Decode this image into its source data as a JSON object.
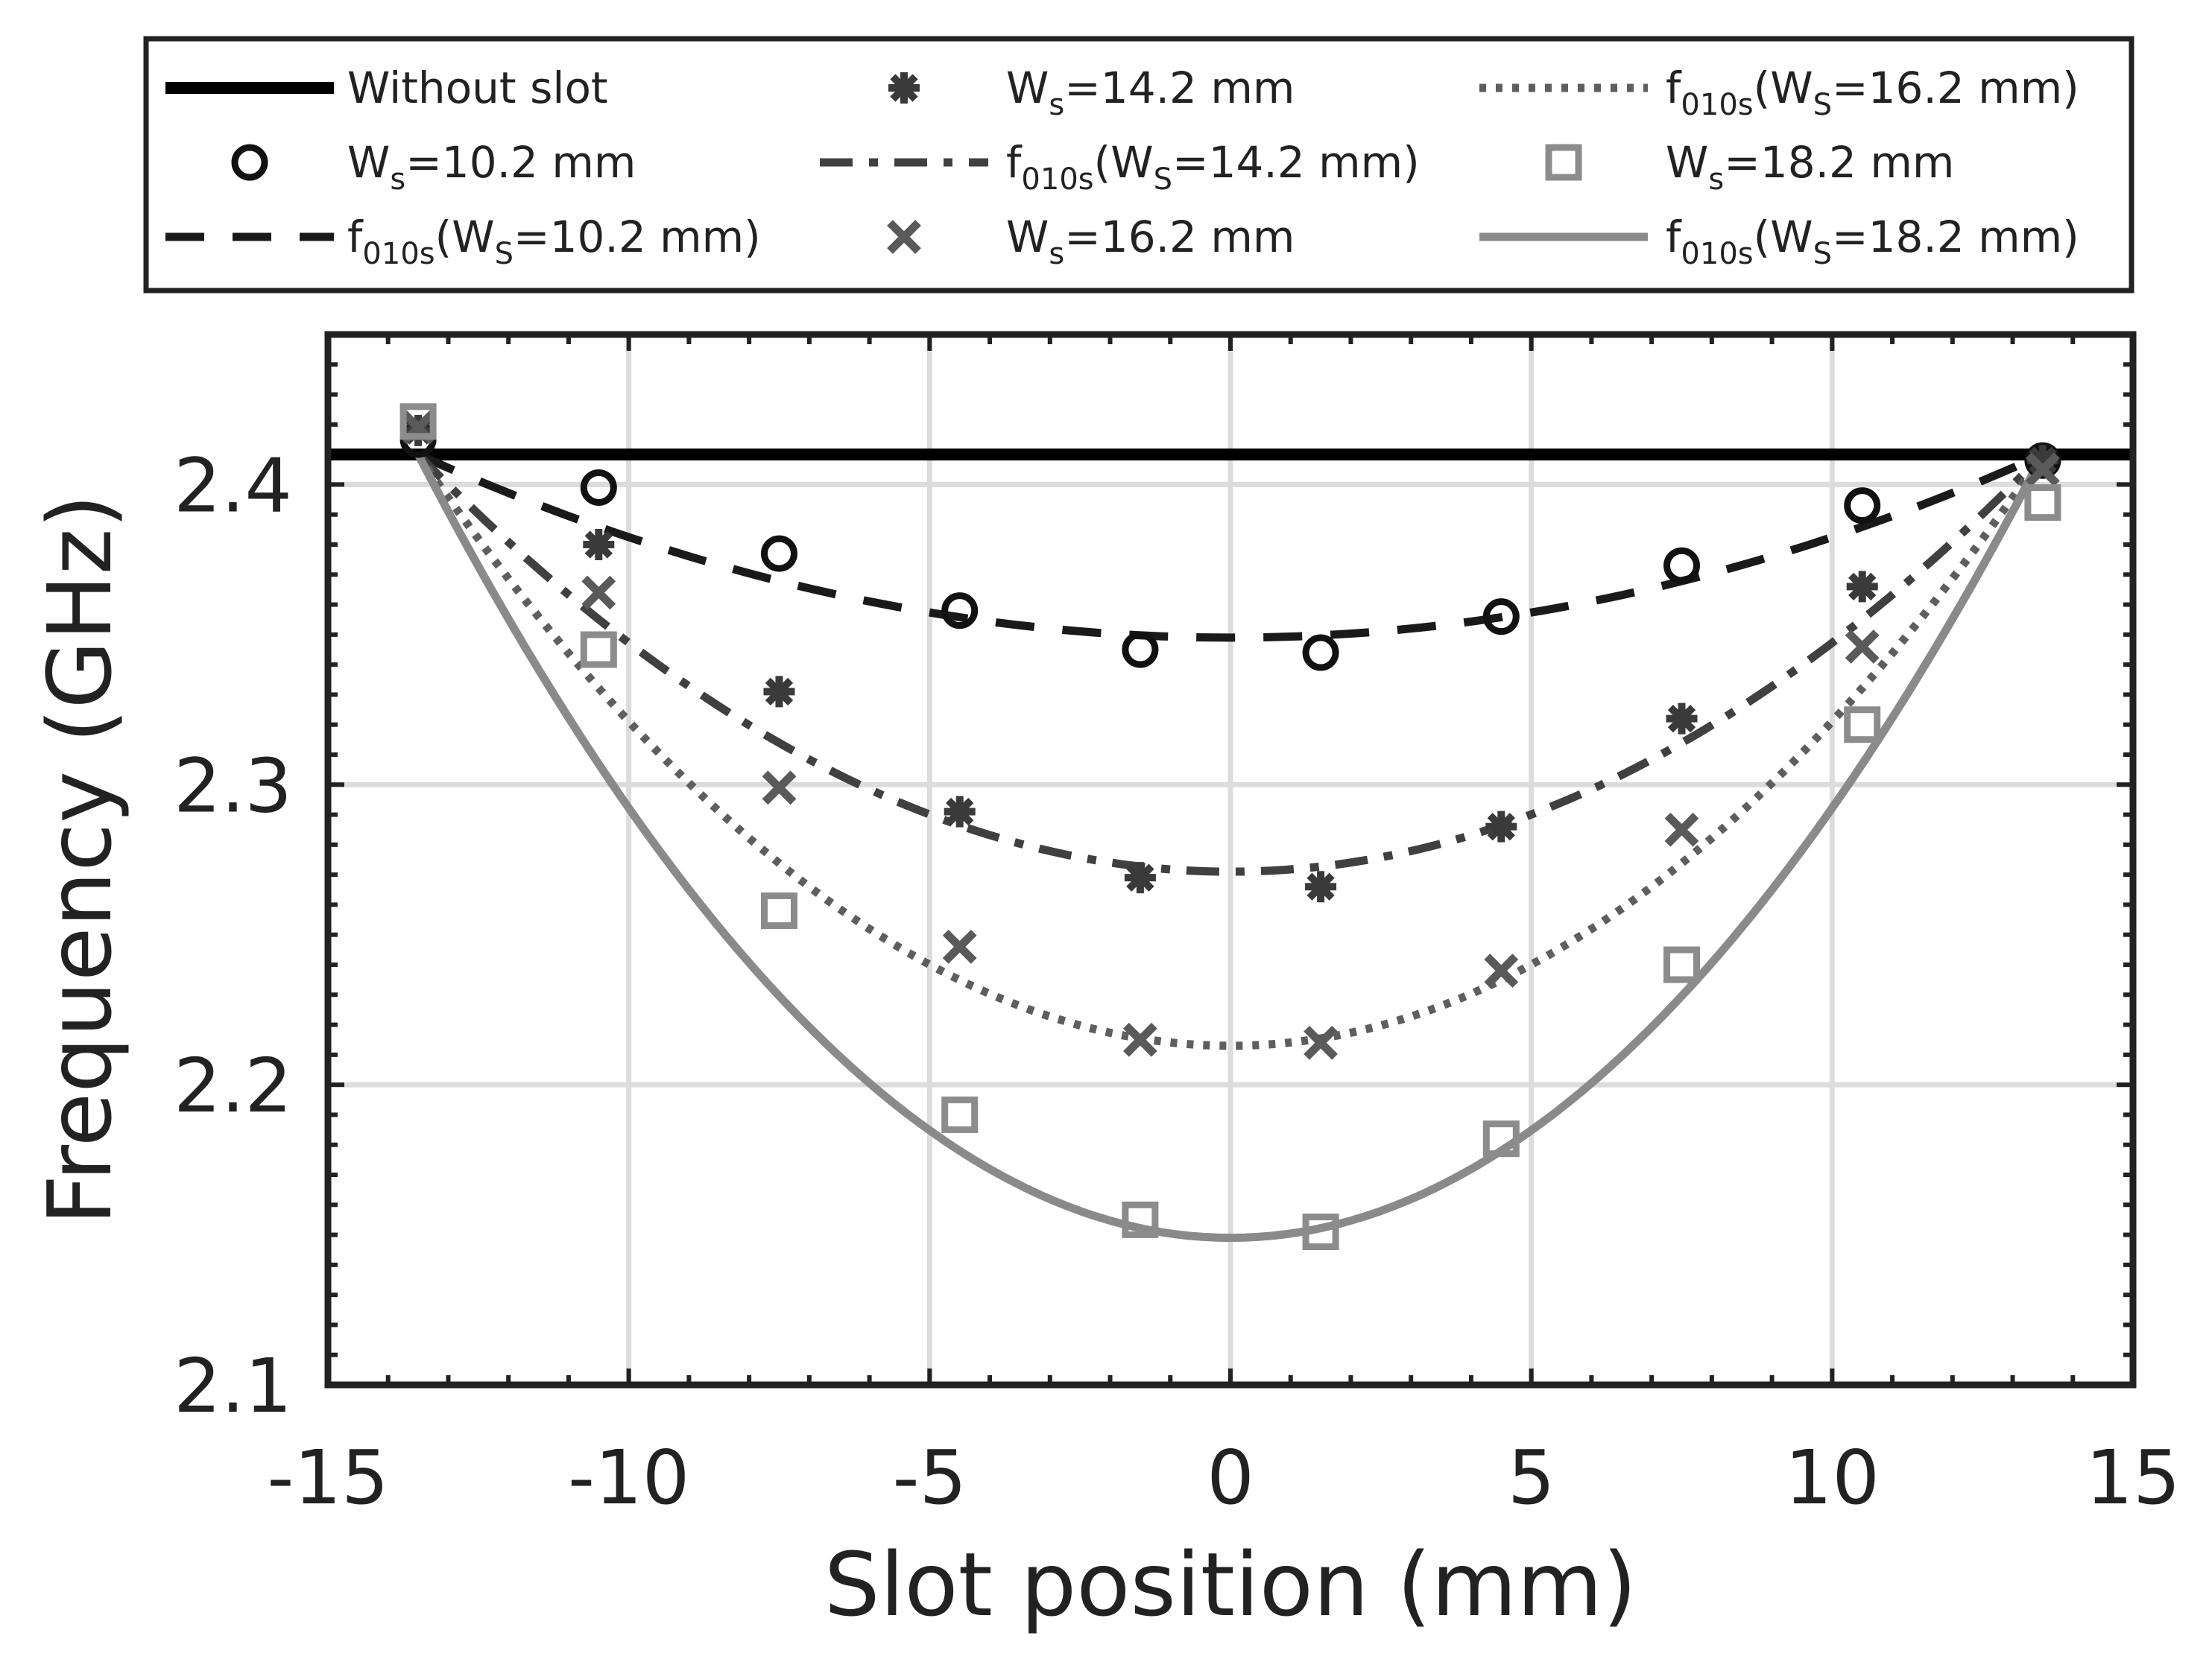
{
  "chart_data": {
    "type": "scatter",
    "title": "",
    "xlabel": "Slot position (mm)",
    "ylabel": "Frequency (GHz)",
    "xlim": [
      -15,
      15
    ],
    "ylim": [
      2.1,
      2.45
    ],
    "xticks": [
      -15,
      -10,
      -5,
      0,
      5,
      10,
      15
    ],
    "xtick_labels": [
      "-15",
      "-10",
      "-5",
      "0",
      "5",
      "10",
      "15"
    ],
    "yticks": [
      2.1,
      2.2,
      2.3,
      2.4
    ],
    "ytick_labels": [
      "2.1",
      "2.2",
      "2.3",
      "2.4"
    ],
    "grid": true,
    "legend_position": "top, outside plot area, 3 columns",
    "reference_line": {
      "name": "Without slot",
      "y": 2.41,
      "color": "#000000"
    },
    "x": [
      -13.5,
      -10.5,
      -7.5,
      -4.5,
      -1.5,
      1.5,
      4.5,
      7.5,
      10.5,
      13.5
    ],
    "series": [
      {
        "name": "Ws=10.2 mm",
        "kind": "markers",
        "marker": "circle",
        "color": "#111111",
        "values": [
          2.415,
          2.399,
          2.377,
          2.358,
          2.345,
          2.344,
          2.356,
          2.373,
          2.393,
          2.408
        ]
      },
      {
        "name": "Ws=14.2 mm",
        "kind": "markers",
        "marker": "star",
        "color": "#3a3a3a",
        "values": [
          2.418,
          2.38,
          2.331,
          2.291,
          2.269,
          2.266,
          2.286,
          2.322,
          2.366,
          2.408
        ]
      },
      {
        "name": "Ws=16.2 mm",
        "kind": "markers",
        "marker": "x",
        "color": "#5a5a5a",
        "values": [
          2.419,
          2.364,
          2.299,
          2.246,
          2.215,
          2.214,
          2.238,
          2.285,
          2.346,
          2.405
        ]
      },
      {
        "name": "Ws=18.2 mm",
        "kind": "markers",
        "marker": "square",
        "color": "#8c8c8c",
        "values": [
          2.421,
          2.345,
          2.258,
          2.19,
          2.155,
          2.151,
          2.182,
          2.24,
          2.32,
          2.394
        ]
      },
      {
        "name": "f010s(WS=10.2 mm)",
        "kind": "fit",
        "dash": "dashed",
        "color": "#1a1a1a",
        "vertex": [
          0,
          2.349
        ],
        "endpoint": [
          13.5,
          2.41
        ]
      },
      {
        "name": "f010s(WS=14.2 mm)",
        "kind": "fit",
        "dash": "dashdot",
        "color": "#404040",
        "vertex": [
          0,
          2.271
        ],
        "endpoint": [
          13.5,
          2.41
        ]
      },
      {
        "name": "f010s(WS=16.2 mm)",
        "kind": "fit",
        "dash": "dotted",
        "color": "#5e5e5e",
        "vertex": [
          0,
          2.213
        ],
        "endpoint": [
          13.5,
          2.41
        ]
      },
      {
        "name": "f010s(WS=18.2 mm)",
        "kind": "fit",
        "dash": "solid",
        "color": "#8a8a8a",
        "vertex": [
          0,
          2.149
        ],
        "endpoint": [
          13.5,
          2.41
        ]
      }
    ],
    "legend": [
      {
        "base": "Without slot",
        "sub": "",
        "tail": "",
        "sub2": "",
        "rest": "",
        "style": "thick-solid",
        "color": "#000000"
      },
      {
        "base": "W",
        "sub": "s",
        "tail": "=10.2 mm",
        "sub2": "",
        "rest": "",
        "style": "circle",
        "color": "#111111"
      },
      {
        "base": "f",
        "sub": "010s",
        "tail": "(W",
        "sub2": "S",
        "rest": "=10.2 mm)",
        "style": "dashed",
        "color": "#1a1a1a"
      },
      {
        "base": "W",
        "sub": "s",
        "tail": "=14.2 mm",
        "sub2": "",
        "rest": "",
        "style": "star",
        "color": "#3a3a3a"
      },
      {
        "base": "f",
        "sub": "010s",
        "tail": "(W",
        "sub2": "S",
        "rest": "=14.2 mm)",
        "style": "dashdot",
        "color": "#404040"
      },
      {
        "base": "W",
        "sub": "s",
        "tail": "=16.2 mm",
        "sub2": "",
        "rest": "",
        "style": "x",
        "color": "#5a5a5a"
      },
      {
        "base": "f",
        "sub": "010s",
        "tail": "(W",
        "sub2": "S",
        "rest": "=16.2 mm)",
        "style": "dotted",
        "color": "#5e5e5e"
      },
      {
        "base": "W",
        "sub": "s",
        "tail": "=18.2 mm",
        "sub2": "",
        "rest": "",
        "style": "square",
        "color": "#8c8c8c"
      },
      {
        "base": "f",
        "sub": "010s",
        "tail": "(W",
        "sub2": "S",
        "rest": "=18.2 mm)",
        "style": "solid",
        "color": "#8a8a8a"
      }
    ]
  }
}
